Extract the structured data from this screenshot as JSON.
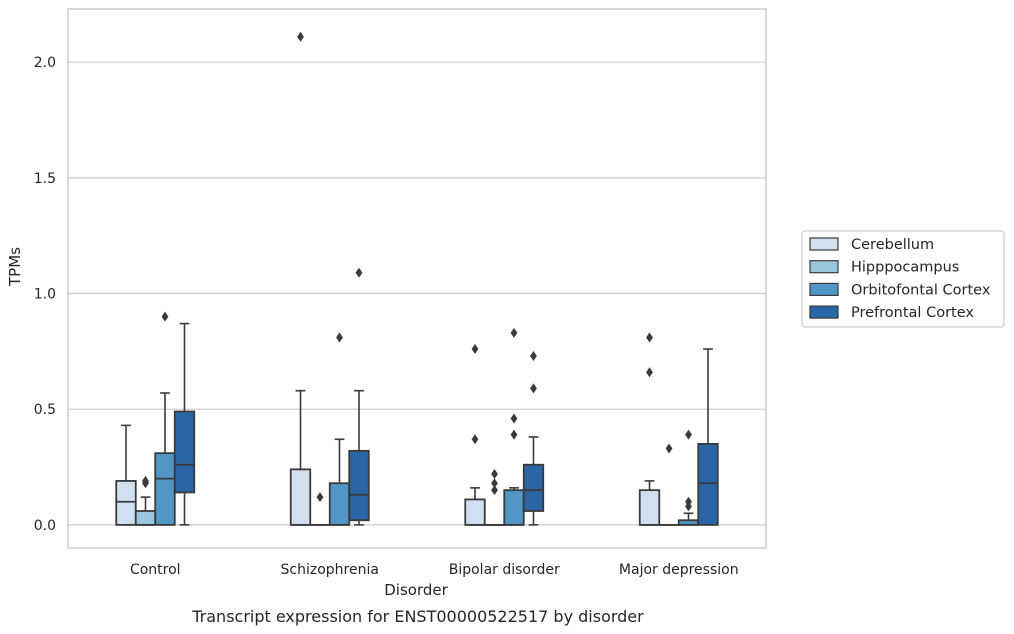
{
  "chart_data": {
    "type": "box",
    "caption": "Transcript expression for ENST00000522517 by disorder",
    "xlabel": "Disorder",
    "ylabel": "TPMs",
    "ylim": [
      -0.1,
      2.23
    ],
    "yticks": [
      0.0,
      0.5,
      1.0,
      1.5,
      2.0
    ],
    "ytick_labels": [
      "0.0",
      "0.5",
      "1.0",
      "1.5",
      "2.0"
    ],
    "grid": "horizontal",
    "legend_position": "right",
    "categories": [
      "Control",
      "Schizophrenia",
      "Bipolar disorder",
      "Major depression"
    ],
    "series": [
      {
        "name": "Cerebellum",
        "color": "#d0e0f1",
        "boxes": [
          {
            "whisker_low": 0.0,
            "q1": 0.0,
            "median": 0.1,
            "q3": 0.19,
            "whisker_high": 0.43,
            "outliers": []
          },
          {
            "whisker_low": 0.0,
            "q1": 0.0,
            "median": 0.0,
            "q3": 0.24,
            "whisker_high": 0.58,
            "outliers": [
              2.11
            ]
          },
          {
            "whisker_low": 0.0,
            "q1": 0.0,
            "median": 0.0,
            "q3": 0.11,
            "whisker_high": 0.16,
            "outliers": [
              0.37,
              0.76
            ]
          },
          {
            "whisker_low": 0.0,
            "q1": 0.0,
            "median": 0.0,
            "q3": 0.15,
            "whisker_high": 0.19,
            "outliers": [
              0.66,
              0.81
            ]
          }
        ]
      },
      {
        "name": "Hipppocampus",
        "color": "#9ac6e0",
        "boxes": [
          {
            "whisker_low": 0.0,
            "q1": 0.0,
            "median": 0.0,
            "q3": 0.06,
            "whisker_high": 0.12,
            "outliers": [
              0.18,
              0.19
            ]
          },
          {
            "whisker_low": 0.0,
            "q1": 0.0,
            "median": 0.0,
            "q3": 0.0,
            "whisker_high": 0.0,
            "outliers": [
              0.12
            ]
          },
          {
            "whisker_low": 0.0,
            "q1": 0.0,
            "median": 0.0,
            "q3": 0.0,
            "whisker_high": 0.0,
            "outliers": [
              0.15,
              0.18,
              0.22
            ]
          },
          {
            "whisker_low": 0.0,
            "q1": 0.0,
            "median": 0.0,
            "q3": 0.0,
            "whisker_high": 0.0,
            "outliers": [
              0.33
            ]
          }
        ]
      },
      {
        "name": "Orbitofontal Cortex",
        "color": "#5096c6",
        "boxes": [
          {
            "whisker_low": 0.0,
            "q1": 0.0,
            "median": 0.2,
            "q3": 0.31,
            "whisker_high": 0.57,
            "outliers": [
              0.9
            ]
          },
          {
            "whisker_low": 0.0,
            "q1": 0.0,
            "median": 0.0,
            "q3": 0.18,
            "whisker_high": 0.37,
            "outliers": [
              0.81
            ]
          },
          {
            "whisker_low": 0.0,
            "q1": 0.0,
            "median": 0.0,
            "q3": 0.15,
            "whisker_high": 0.16,
            "outliers": [
              0.39,
              0.46,
              0.83
            ]
          },
          {
            "whisker_low": 0.0,
            "q1": 0.0,
            "median": 0.0,
            "q3": 0.02,
            "whisker_high": 0.05,
            "outliers": [
              0.08,
              0.1,
              0.39
            ]
          }
        ]
      },
      {
        "name": "Prefrontal Cortex",
        "color": "#2a65a6",
        "boxes": [
          {
            "whisker_low": 0.0,
            "q1": 0.14,
            "median": 0.26,
            "q3": 0.49,
            "whisker_high": 0.87,
            "outliers": []
          },
          {
            "whisker_low": 0.0,
            "q1": 0.02,
            "median": 0.13,
            "q3": 0.32,
            "whisker_high": 0.58,
            "outliers": [
              1.09
            ]
          },
          {
            "whisker_low": 0.0,
            "q1": 0.06,
            "median": 0.15,
            "q3": 0.26,
            "whisker_high": 0.38,
            "outliers": [
              0.59,
              0.73
            ]
          },
          {
            "whisker_low": 0.0,
            "q1": 0.0,
            "median": 0.18,
            "q3": 0.35,
            "whisker_high": 0.76,
            "outliers": []
          }
        ]
      }
    ]
  }
}
